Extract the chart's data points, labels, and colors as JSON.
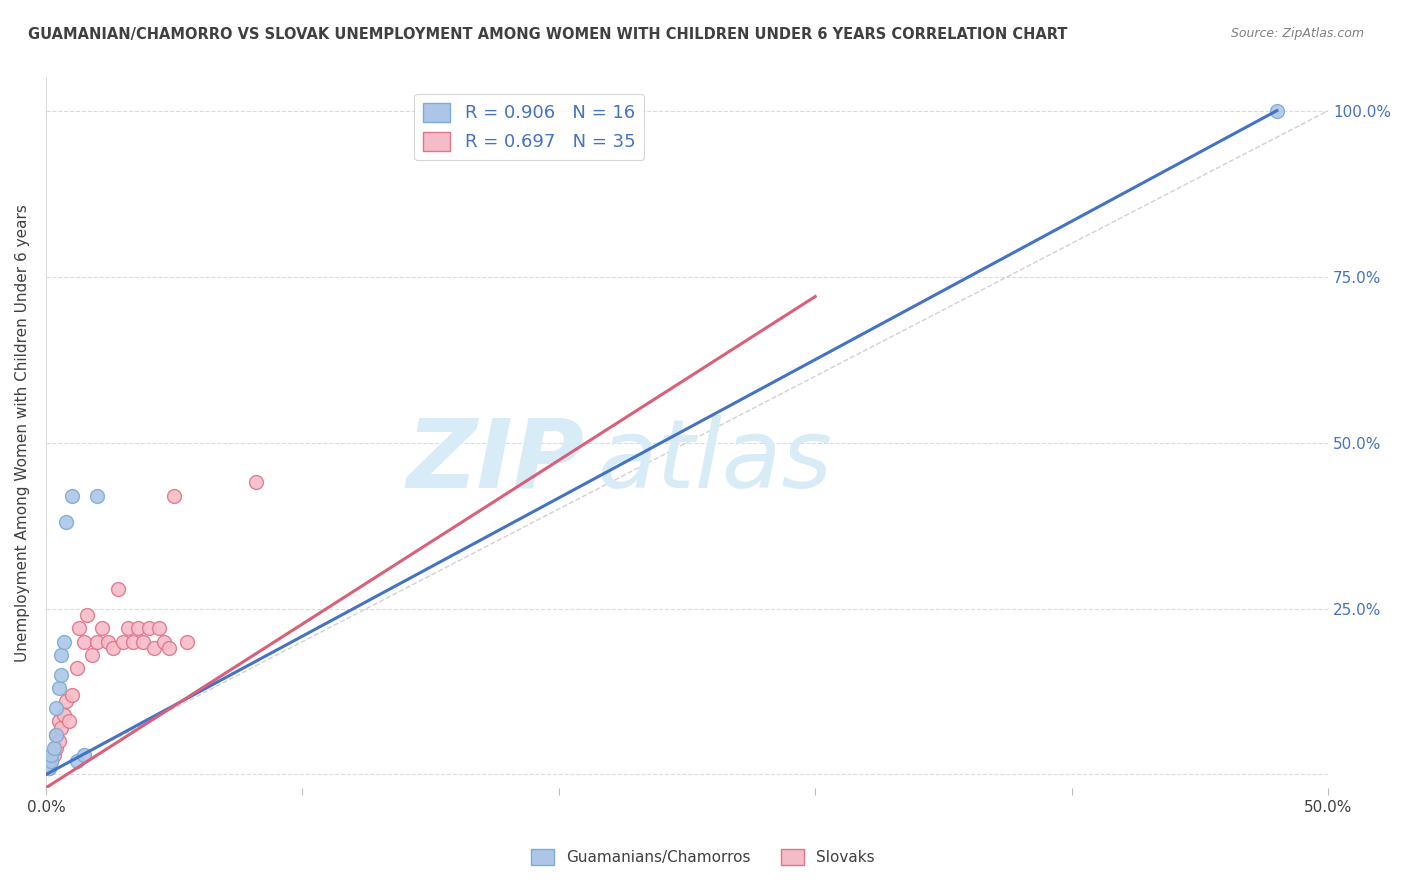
{
  "title": "GUAMANIAN/CHAMORRO VS SLOVAK UNEMPLOYMENT AMONG WOMEN WITH CHILDREN UNDER 6 YEARS CORRELATION CHART",
  "source": "Source: ZipAtlas.com",
  "ylabel": "Unemployment Among Women with Children Under 6 years",
  "xmin": 0.0,
  "xmax": 0.5,
  "ymin": -0.02,
  "ymax": 1.05,
  "xtick_positions": [
    0.0,
    0.1,
    0.2,
    0.3,
    0.4,
    0.5
  ],
  "xtick_labels": [
    "0.0%",
    "",
    "",
    "",
    "",
    "50.0%"
  ],
  "ytick_positions": [
    0.0,
    0.25,
    0.5,
    0.75,
    1.0
  ],
  "ytick_right_labels": [
    "",
    "25.0%",
    "50.0%",
    "75.0%",
    "100.0%"
  ],
  "guamanian_color": "#adc6e8",
  "guamanian_edge_color": "#7badd4",
  "slovak_color": "#f5bcc8",
  "slovak_edge_color": "#e0748a",
  "blue_line_color": "#4472c4",
  "pink_line_color": "#d9607a",
  "diagonal_color": "#cccccc",
  "watermark_zip": "ZIP",
  "watermark_atlas": "atlas",
  "watermark_color": "#d8ecf8",
  "legend_R_blue": "R = 0.906",
  "legend_N_blue": "N = 16",
  "legend_R_pink": "R = 0.697",
  "legend_N_pink": "N = 35",
  "guamanian_x": [
    0.001,
    0.002,
    0.002,
    0.003,
    0.004,
    0.004,
    0.005,
    0.006,
    0.006,
    0.007,
    0.008,
    0.01,
    0.012,
    0.015,
    0.02,
    0.48
  ],
  "guamanian_y": [
    0.01,
    0.02,
    0.03,
    0.04,
    0.06,
    0.1,
    0.13,
    0.15,
    0.18,
    0.2,
    0.38,
    0.42,
    0.02,
    0.03,
    0.42,
    1.0
  ],
  "slovak_x": [
    0.001,
    0.002,
    0.003,
    0.004,
    0.004,
    0.005,
    0.005,
    0.006,
    0.007,
    0.008,
    0.009,
    0.01,
    0.012,
    0.013,
    0.015,
    0.016,
    0.018,
    0.02,
    0.022,
    0.024,
    0.026,
    0.028,
    0.03,
    0.032,
    0.034,
    0.036,
    0.038,
    0.04,
    0.042,
    0.044,
    0.046,
    0.048,
    0.05,
    0.055,
    0.082
  ],
  "slovak_y": [
    0.01,
    0.02,
    0.03,
    0.04,
    0.06,
    0.05,
    0.08,
    0.07,
    0.09,
    0.11,
    0.08,
    0.12,
    0.16,
    0.22,
    0.2,
    0.24,
    0.18,
    0.2,
    0.22,
    0.2,
    0.19,
    0.28,
    0.2,
    0.22,
    0.2,
    0.22,
    0.2,
    0.22,
    0.19,
    0.22,
    0.2,
    0.19,
    0.42,
    0.2,
    0.44
  ],
  "blue_line_x0": 0.0,
  "blue_line_y0": 0.0,
  "blue_line_x1": 0.48,
  "blue_line_y1": 1.0,
  "pink_line_x0": 0.0,
  "pink_line_y0": -0.02,
  "pink_line_x1": 0.3,
  "pink_line_y1": 0.72,
  "background_color": "#ffffff",
  "grid_color": "#d8d8d8",
  "title_color": "#404040",
  "axis_label_color": "#404040",
  "tick_color_right": "#4472c4",
  "marker_size": 100,
  "guamanian_label": "Guamanians/Chamorros",
  "slovak_label": "Slovaks"
}
